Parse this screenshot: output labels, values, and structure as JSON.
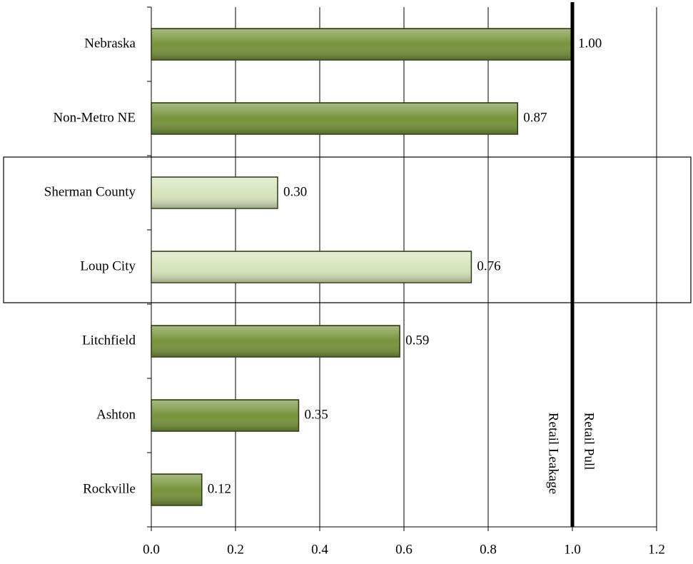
{
  "chart_data": {
    "type": "hbar",
    "categories": [
      "Nebraska",
      "Non-Metro NE",
      "Sherman County",
      "Loup City",
      "Litchfield",
      "Ashton",
      "Rockville"
    ],
    "values": [
      1.0,
      0.87,
      0.3,
      0.76,
      0.59,
      0.35,
      0.12
    ],
    "value_labels": [
      "1.00",
      "0.87",
      "0.30",
      "0.76",
      "0.59",
      "0.35",
      "0.12"
    ],
    "colors": [
      "#77933c",
      "#77933c",
      "#d7e4bc",
      "#d7e4bc",
      "#77933c",
      "#77933c",
      "#77933c"
    ],
    "xlim": [
      0,
      1.2
    ],
    "xticks": [
      {
        "value": 0,
        "label": "0.0"
      },
      0.2,
      0.4,
      0.6,
      0.8,
      {
        "value": 1,
        "label": "1.0"
      },
      1.2
    ],
    "grid": true,
    "reference_line": 1,
    "annotations": [
      "Retail Leakage",
      "Retail Pull"
    ]
  }
}
